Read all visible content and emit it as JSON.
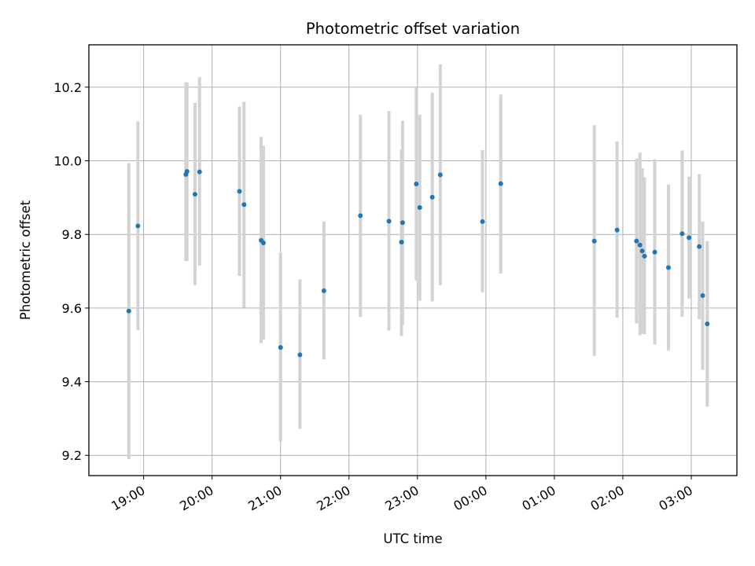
{
  "chart_data": {
    "type": "scatter",
    "title": "Photometric offset variation",
    "xlabel": "UTC time",
    "ylabel": "Photometric offset",
    "grid": true,
    "x_unit": "hours (UTC, 24 = midnight of following day)",
    "xlim": [
      "18:12",
      "27:40"
    ],
    "ylim": [
      9.145,
      10.315
    ],
    "x_tick_labels": [
      "19:00",
      "20:00",
      "21:00",
      "22:00",
      "23:00",
      "00:00",
      "01:00",
      "02:00",
      "03:00"
    ],
    "x_ticks": [
      19,
      20,
      21,
      22,
      23,
      24,
      25,
      26,
      27
    ],
    "y_tick_labels": [
      "9.2",
      "9.4",
      "9.6",
      "9.8",
      "10.0",
      "10.2"
    ],
    "y_ticks": [
      9.2,
      9.4,
      9.6,
      9.8,
      10.0,
      10.2
    ],
    "marker_color": "#1f77b4",
    "errorbar_color": "#d3d3d3",
    "points": [
      {
        "time": "18:47",
        "y": 9.592,
        "ylo": 9.19,
        "yhi": 9.994
      },
      {
        "time": "18:55",
        "y": 9.823,
        "ylo": 9.54,
        "yhi": 10.107
      },
      {
        "time": "19:37",
        "y": 9.963,
        "ylo": 9.728,
        "yhi": 10.213
      },
      {
        "time": "19:38",
        "y": 9.971,
        "ylo": 9.728,
        "yhi": 10.213
      },
      {
        "time": "19:45",
        "y": 9.909,
        "ylo": 9.662,
        "yhi": 10.157
      },
      {
        "time": "19:49",
        "y": 9.97,
        "ylo": 9.715,
        "yhi": 10.227
      },
      {
        "time": "20:24",
        "y": 9.917,
        "ylo": 9.687,
        "yhi": 10.147
      },
      {
        "time": "20:28",
        "y": 9.881,
        "ylo": 9.601,
        "yhi": 10.16
      },
      {
        "time": "20:43",
        "y": 9.784,
        "ylo": 9.505,
        "yhi": 10.065
      },
      {
        "time": "20:45",
        "y": 9.777,
        "ylo": 9.514,
        "yhi": 10.041
      },
      {
        "time": "21:00",
        "y": 9.493,
        "ylo": 9.238,
        "yhi": 9.75
      },
      {
        "time": "21:17",
        "y": 9.473,
        "ylo": 9.272,
        "yhi": 9.678
      },
      {
        "time": "21:38",
        "y": 9.647,
        "ylo": 9.461,
        "yhi": 9.835
      },
      {
        "time": "22:10",
        "y": 9.851,
        "ylo": 9.576,
        "yhi": 10.125
      },
      {
        "time": "22:35",
        "y": 9.836,
        "ylo": 9.539,
        "yhi": 10.135
      },
      {
        "time": "22:46",
        "y": 9.779,
        "ylo": 9.524,
        "yhi": 10.03
      },
      {
        "time": "22:47",
        "y": 9.832,
        "ylo": 9.554,
        "yhi": 10.109
      },
      {
        "time": "22:59",
        "y": 9.937,
        "ylo": 9.675,
        "yhi": 10.198
      },
      {
        "time": "23:02",
        "y": 9.873,
        "ylo": 9.62,
        "yhi": 10.125
      },
      {
        "time": "23:13",
        "y": 9.901,
        "ylo": 9.618,
        "yhi": 10.185
      },
      {
        "time": "23:20",
        "y": 9.962,
        "ylo": 9.662,
        "yhi": 10.262
      },
      {
        "time": "23:57",
        "y": 9.835,
        "ylo": 9.643,
        "yhi": 10.029
      },
      {
        "time": "24:13",
        "y": 9.938,
        "ylo": 9.694,
        "yhi": 10.18
      },
      {
        "time": "25:35",
        "y": 9.782,
        "ylo": 9.47,
        "yhi": 10.097
      },
      {
        "time": "25:55",
        "y": 9.812,
        "ylo": 9.574,
        "yhi": 10.052
      },
      {
        "time": "26:12",
        "y": 9.782,
        "ylo": 9.558,
        "yhi": 10.006
      },
      {
        "time": "26:15",
        "y": 9.771,
        "ylo": 9.526,
        "yhi": 10.022
      },
      {
        "time": "26:17",
        "y": 9.755,
        "ylo": 9.53,
        "yhi": 9.98
      },
      {
        "time": "26:19",
        "y": 9.741,
        "ylo": 9.529,
        "yhi": 9.955
      },
      {
        "time": "26:28",
        "y": 9.752,
        "ylo": 9.501,
        "yhi": 10.004
      },
      {
        "time": "26:40",
        "y": 9.71,
        "ylo": 9.485,
        "yhi": 9.936
      },
      {
        "time": "26:52",
        "y": 9.802,
        "ylo": 9.576,
        "yhi": 10.028
      },
      {
        "time": "26:58",
        "y": 9.791,
        "ylo": 9.626,
        "yhi": 9.957
      },
      {
        "time": "27:07",
        "y": 9.767,
        "ylo": 9.57,
        "yhi": 9.964
      },
      {
        "time": "27:10",
        "y": 9.634,
        "ylo": 9.432,
        "yhi": 9.835
      },
      {
        "time": "27:14",
        "y": 9.557,
        "ylo": 9.332,
        "yhi": 9.782
      }
    ]
  }
}
